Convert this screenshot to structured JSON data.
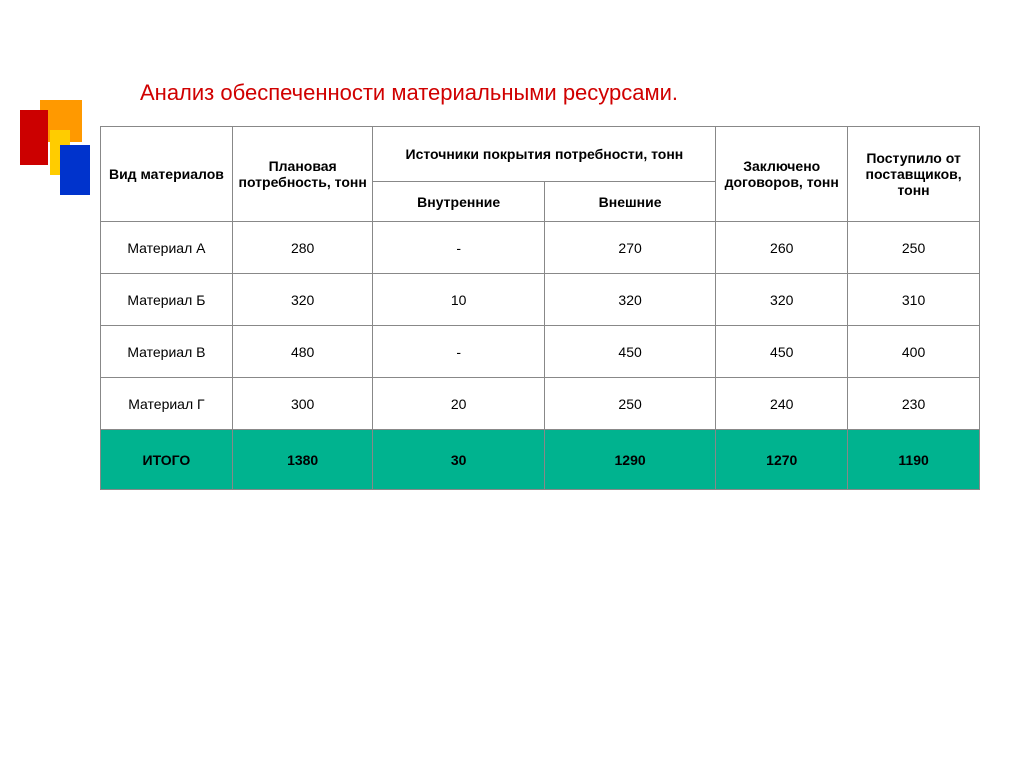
{
  "title": "Анализ обеспеченности материальными ресурсами.",
  "table": {
    "headers": {
      "type": "Вид материалов",
      "plan": "Плановая потребность, тонн",
      "sources": "Источники покрытия потребности, тонн",
      "inner": "Внутренние",
      "outer": "Внешние",
      "contracts": "Заключено договоров, тонн",
      "received": "Поступило от поставщиков, тонн"
    },
    "rows": [
      {
        "type": "Материал А",
        "plan": "280",
        "inner": "-",
        "outer": "270",
        "contracts": "260",
        "received": "250"
      },
      {
        "type": "Материал Б",
        "plan": "320",
        "inner": "10",
        "outer": "320",
        "contracts": "320",
        "received": "310"
      },
      {
        "type": "Материал В",
        "plan": "480",
        "inner": "-",
        "outer": "450",
        "contracts": "450",
        "received": "400"
      },
      {
        "type": "Материал Г",
        "plan": "300",
        "inner": "20",
        "outer": "250",
        "contracts": "240",
        "received": "230"
      }
    ],
    "total": {
      "type": "ИТОГО",
      "plan": "1380",
      "inner": "30",
      "outer": "1290",
      "contracts": "1270",
      "received": "1190"
    }
  },
  "colors": {
    "title": "#d00000",
    "total_bg": "#00b38f",
    "border": "#888888",
    "accent_orange": "#ff9900",
    "accent_red": "#cc0000",
    "accent_blue": "#0033cc",
    "accent_yellow": "#ffcc00"
  }
}
